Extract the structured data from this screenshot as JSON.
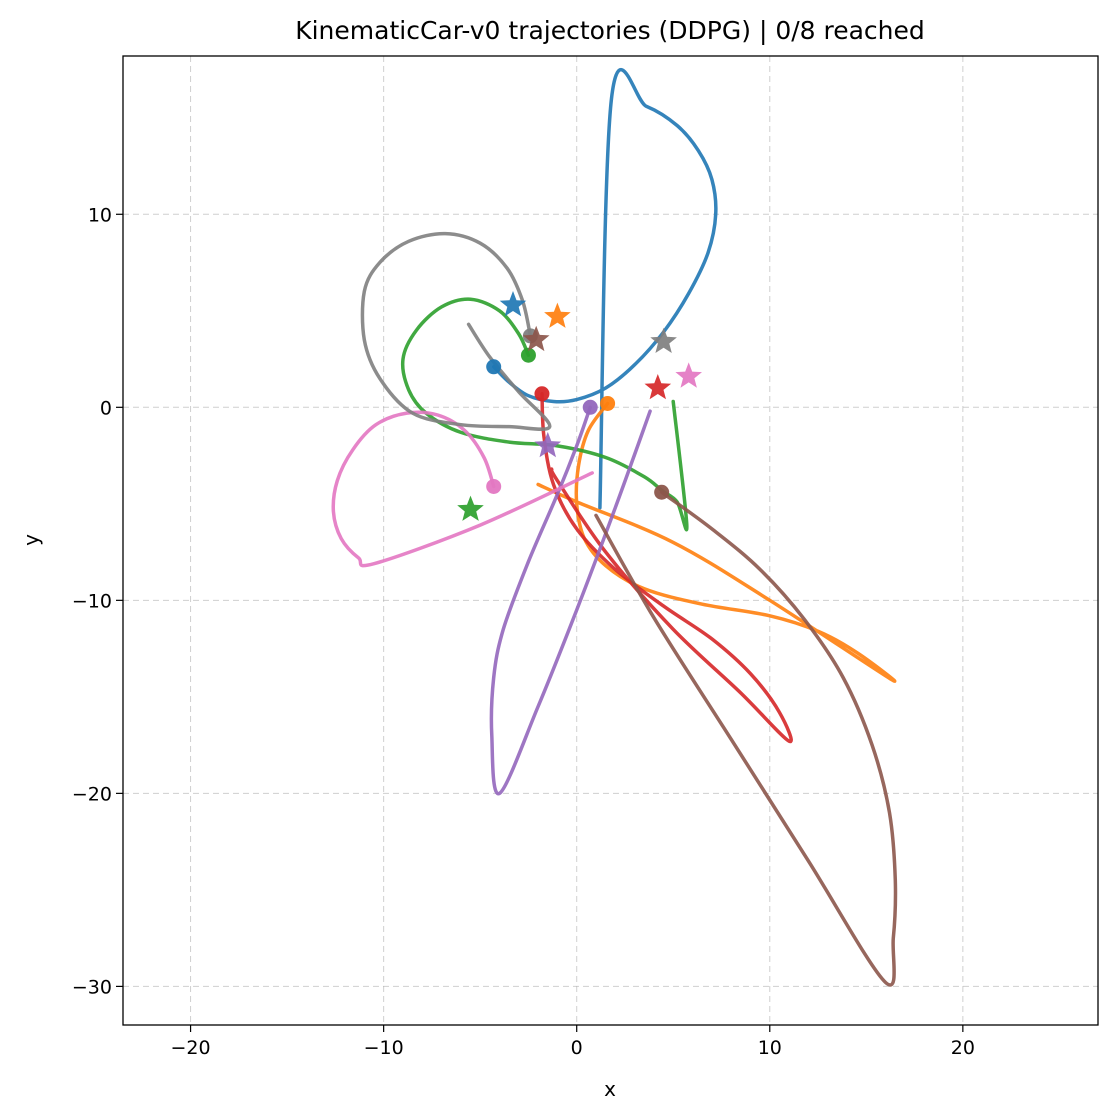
{
  "chart_data": {
    "type": "line",
    "title": "KinematicCar-v0 trajectories (DDPG) | 0/8 reached",
    "xlabel": "x",
    "ylabel": "y",
    "xlim": [
      -23.5,
      27
    ],
    "ylim": [
      -32,
      18.2
    ],
    "xticks": [
      -20,
      -10,
      0,
      10,
      20
    ],
    "yticks": [
      -30,
      -20,
      -10,
      0,
      10
    ],
    "xtick_labels": [
      "−20",
      "−10",
      "0",
      "10",
      "20"
    ],
    "ytick_labels": [
      "−30",
      "−20",
      "−10",
      "0",
      "10"
    ],
    "grid": true,
    "series": [
      {
        "color": "#1f77b4",
        "start": [
          -4.3,
          2.1
        ],
        "goal": [
          -3.3,
          5.3
        ],
        "points": [
          [
            -4.3,
            2.1
          ],
          [
            -3.5,
            1.3
          ],
          [
            -2.5,
            0.6
          ],
          [
            -1.2,
            0.3
          ],
          [
            0,
            0.4
          ],
          [
            1.5,
            1.0
          ],
          [
            3.0,
            2.2
          ],
          [
            4.5,
            3.9
          ],
          [
            5.8,
            5.9
          ],
          [
            6.8,
            8.0
          ],
          [
            7.2,
            10.0
          ],
          [
            7.0,
            11.8
          ],
          [
            6.3,
            13.3
          ],
          [
            5.2,
            14.6
          ],
          [
            3.6,
            15.6
          ],
          [
            1.8,
            16.0
          ],
          [
            1.2,
            -5.2
          ]
        ]
      },
      {
        "color": "#ff7f0e",
        "start": [
          1.6,
          0.2
        ],
        "goal": [
          -1.0,
          4.7
        ],
        "points": [
          [
            1.6,
            0.2
          ],
          [
            0.6,
            -1.2
          ],
          [
            0.1,
            -3
          ],
          [
            0.0,
            -5
          ],
          [
            0.4,
            -6.8
          ],
          [
            1.5,
            -8.2
          ],
          [
            3.5,
            -9.4
          ],
          [
            6.5,
            -10.2
          ],
          [
            10,
            -10.8
          ],
          [
            12.5,
            -11.6
          ],
          [
            14.5,
            -12.7
          ],
          [
            16.3,
            -14.1
          ],
          [
            10,
            -10
          ],
          [
            5,
            -7
          ],
          [
            0,
            -4.9
          ],
          [
            -2.0,
            -4.0
          ]
        ]
      },
      {
        "color": "#2ca02c",
        "start": [
          -2.5,
          2.7
        ],
        "goal": [
          -5.5,
          -5.3
        ],
        "points": [
          [
            -2.5,
            2.7
          ],
          [
            -3.0,
            3.8
          ],
          [
            -4.0,
            5.0
          ],
          [
            -5.5,
            5.6
          ],
          [
            -7.0,
            5.2
          ],
          [
            -8.3,
            4.0
          ],
          [
            -9.0,
            2.5
          ],
          [
            -8.7,
            0.9
          ],
          [
            -7.8,
            -0.3
          ],
          [
            -6.0,
            -1.3
          ],
          [
            -3.5,
            -1.8
          ],
          [
            -1.0,
            -2.0
          ],
          [
            1.5,
            -2.6
          ],
          [
            3.5,
            -3.6
          ],
          [
            4.4,
            -4.3
          ],
          [
            5.2,
            -4.9
          ],
          [
            5.7,
            -6.1
          ],
          [
            5.0,
            0.3
          ]
        ]
      },
      {
        "color": "#d62728",
        "start": [
          -1.8,
          0.7
        ],
        "goal": [
          4.2,
          1.0
        ],
        "points": [
          [
            -1.8,
            0.7
          ],
          [
            -1.7,
            -1.5
          ],
          [
            -1.2,
            -4.0
          ],
          [
            0,
            -6.3
          ],
          [
            2,
            -8.4
          ],
          [
            4.5,
            -10.3
          ],
          [
            7,
            -12.0
          ],
          [
            9,
            -13.8
          ],
          [
            10.5,
            -15.8
          ],
          [
            11,
            -17.3
          ],
          [
            8.5,
            -14.8
          ],
          [
            5,
            -11.5
          ],
          [
            1.5,
            -7.5
          ],
          [
            -1.0,
            -3.8
          ],
          [
            -1.3,
            -3.2
          ]
        ]
      },
      {
        "color": "#9467bd",
        "start": [
          0.7,
          0.0
        ],
        "goal": [
          -1.5,
          -2.0
        ],
        "points": [
          [
            0.7,
            0.0
          ],
          [
            0.0,
            -2.0
          ],
          [
            -1.0,
            -4.5
          ],
          [
            -2.5,
            -8.0
          ],
          [
            -3.8,
            -11.5
          ],
          [
            -4.3,
            -14.0
          ],
          [
            -4.4,
            -17.0
          ],
          [
            -4.0,
            -20.0
          ],
          [
            -2,
            -15.5
          ],
          [
            0,
            -10.5
          ],
          [
            2.0,
            -5.2
          ],
          [
            3.8,
            -0.2
          ]
        ]
      },
      {
        "color": "#8c564b",
        "start": [
          4.4,
          -4.4
        ],
        "goal": [
          -2.1,
          3.5
        ],
        "points": [
          [
            4.4,
            -4.4
          ],
          [
            7,
            -6.3
          ],
          [
            9.5,
            -8.4
          ],
          [
            11.8,
            -11.0
          ],
          [
            13.8,
            -14.0
          ],
          [
            15.3,
            -17.5
          ],
          [
            16.2,
            -21.0
          ],
          [
            16.5,
            -24.5
          ],
          [
            16.4,
            -27.5
          ],
          [
            16.0,
            -29.8
          ],
          [
            12,
            -23.5
          ],
          [
            8,
            -17.2
          ],
          [
            4,
            -10.9
          ],
          [
            1.0,
            -5.6
          ]
        ]
      },
      {
        "color": "#e377c2",
        "start": [
          -4.3,
          -4.1
        ],
        "goal": [
          5.8,
          1.6
        ],
        "points": [
          [
            -4.3,
            -4.1
          ],
          [
            -4.8,
            -2.6
          ],
          [
            -5.8,
            -1.2
          ],
          [
            -7.2,
            -0.4
          ],
          [
            -8.8,
            -0.3
          ],
          [
            -10.4,
            -0.9
          ],
          [
            -11.6,
            -2.2
          ],
          [
            -12.4,
            -3.8
          ],
          [
            -12.6,
            -5.4
          ],
          [
            -12.2,
            -6.8
          ],
          [
            -11.3,
            -7.8
          ],
          [
            -10.5,
            -8.1
          ],
          [
            -5,
            -6.1
          ],
          [
            0.8,
            -3.4
          ]
        ]
      },
      {
        "color": "#7f7f7f",
        "start": [
          -2.4,
          3.7
        ],
        "goal": [
          4.5,
          3.4
        ],
        "points": [
          [
            -2.4,
            3.7
          ],
          [
            -2.8,
            5.5
          ],
          [
            -3.6,
            7.2
          ],
          [
            -5.0,
            8.5
          ],
          [
            -6.8,
            9.0
          ],
          [
            -8.7,
            8.6
          ],
          [
            -10.2,
            7.5
          ],
          [
            -11.0,
            6.0
          ],
          [
            -11.0,
            3.5
          ],
          [
            -10.2,
            1.5
          ],
          [
            -8.5,
            -0.3
          ],
          [
            -6.0,
            -0.9
          ],
          [
            -3.5,
            -1.0
          ],
          [
            -1.4,
            -1.0
          ],
          [
            -3,
            0.8
          ],
          [
            -4.5,
            2.6
          ],
          [
            -5.6,
            4.3
          ]
        ]
      }
    ]
  }
}
